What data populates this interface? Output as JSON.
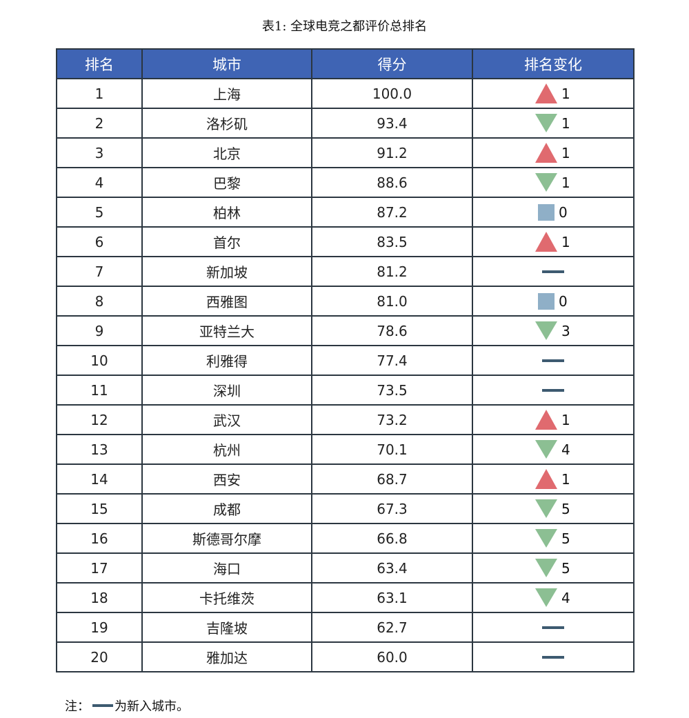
{
  "caption": "表1: 全球电竞之都评价总排名",
  "headers": {
    "rank": "排名",
    "city": "城市",
    "score": "得分",
    "change": "排名变化"
  },
  "rows": [
    {
      "rank": "1",
      "city": "上海",
      "score": "100.0",
      "change_type": "up",
      "change_value": "1"
    },
    {
      "rank": "2",
      "city": "洛杉矶",
      "score": "93.4",
      "change_type": "down",
      "change_value": "1"
    },
    {
      "rank": "3",
      "city": "北京",
      "score": "91.2",
      "change_type": "up",
      "change_value": "1"
    },
    {
      "rank": "4",
      "city": "巴黎",
      "score": "88.6",
      "change_type": "down",
      "change_value": "1"
    },
    {
      "rank": "5",
      "city": "柏林",
      "score": "87.2",
      "change_type": "same",
      "change_value": "0"
    },
    {
      "rank": "6",
      "city": "首尔",
      "score": "83.5",
      "change_type": "up",
      "change_value": "1"
    },
    {
      "rank": "7",
      "city": "新加坡",
      "score": "81.2",
      "change_type": "new",
      "change_value": ""
    },
    {
      "rank": "8",
      "city": "西雅图",
      "score": "81.0",
      "change_type": "same",
      "change_value": "0"
    },
    {
      "rank": "9",
      "city": "亚特兰大",
      "score": "78.6",
      "change_type": "down",
      "change_value": "3"
    },
    {
      "rank": "10",
      "city": "利雅得",
      "score": "77.4",
      "change_type": "new",
      "change_value": ""
    },
    {
      "rank": "11",
      "city": "深圳",
      "score": "73.5",
      "change_type": "new",
      "change_value": ""
    },
    {
      "rank": "12",
      "city": "武汉",
      "score": "73.2",
      "change_type": "up",
      "change_value": "1"
    },
    {
      "rank": "13",
      "city": "杭州",
      "score": "70.1",
      "change_type": "down",
      "change_value": "4"
    },
    {
      "rank": "14",
      "city": "西安",
      "score": "68.7",
      "change_type": "up",
      "change_value": "1"
    },
    {
      "rank": "15",
      "city": "成都",
      "score": "67.3",
      "change_type": "down",
      "change_value": "5"
    },
    {
      "rank": "16",
      "city": "斯德哥尔摩",
      "score": "66.8",
      "change_type": "down",
      "change_value": "5"
    },
    {
      "rank": "17",
      "city": "海口",
      "score": "63.4",
      "change_type": "down",
      "change_value": "5"
    },
    {
      "rank": "18",
      "city": "卡托维茨",
      "score": "63.1",
      "change_type": "down",
      "change_value": "4"
    },
    {
      "rank": "19",
      "city": "吉隆坡",
      "score": "62.7",
      "change_type": "new",
      "change_value": ""
    },
    {
      "rank": "20",
      "city": "雅加达",
      "score": "60.0",
      "change_type": "new",
      "change_value": ""
    }
  ],
  "note": {
    "prefix": "注：",
    "text": "为新入城市。"
  },
  "colors": {
    "header_bg": "#3f64b4",
    "up": "#e06a6f",
    "down": "#8cbf93",
    "same": "#8fafc7",
    "new": "#3d5a70"
  },
  "icons": {
    "up": "red-up-triangle-icon",
    "down": "green-down-triangle-icon",
    "same": "blue-square-icon",
    "new": "new-entry-dash-icon"
  }
}
